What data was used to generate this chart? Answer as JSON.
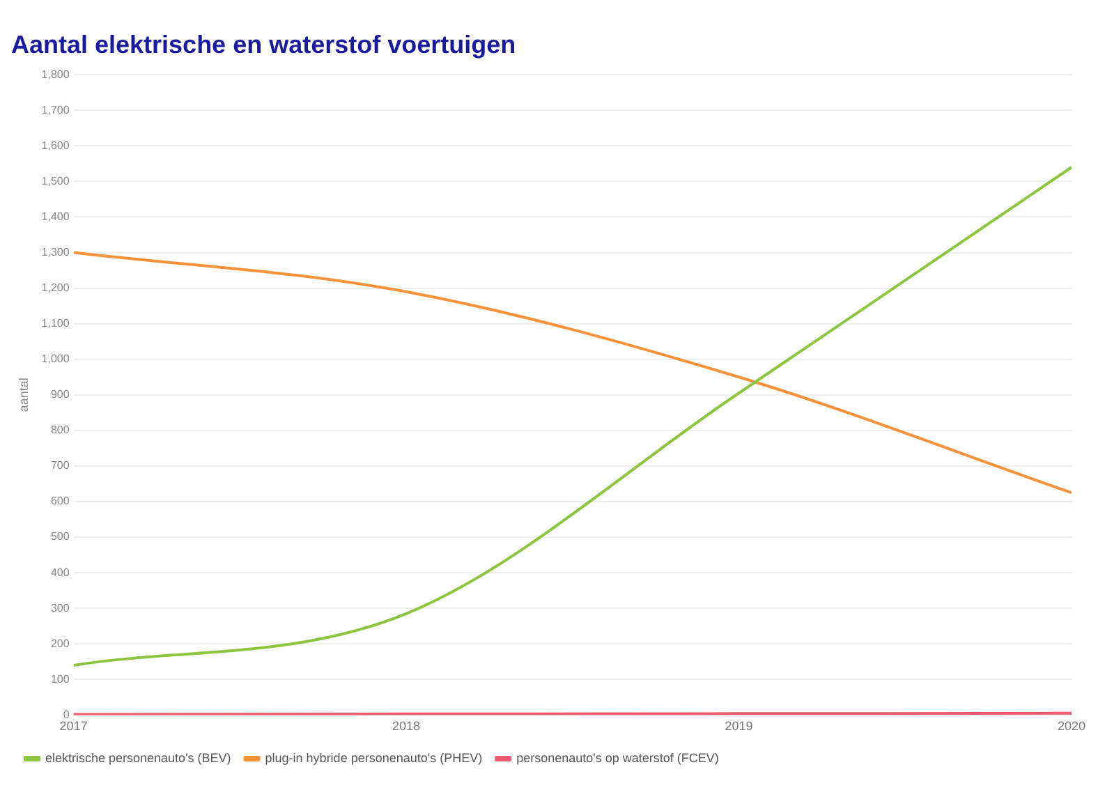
{
  "chart_data": {
    "type": "line",
    "title": "Aantal elektrische en waterstof voertuigen",
    "ylabel": "aantal",
    "x": [
      2017,
      2018,
      2019,
      2020
    ],
    "series": [
      {
        "name": "elektrische personenauto's (BEV)",
        "color": "#8cc63f",
        "values": [
          140,
          285,
          905,
          1540
        ]
      },
      {
        "name": "plug-in hybride personenauto's (PHEV)",
        "color": "#f7923a",
        "values": [
          1300,
          1190,
          950,
          625
        ]
      },
      {
        "name": "personenauto's op waterstof (FCEV)",
        "color": "#ef5a6f",
        "values": [
          2,
          3,
          4,
          5
        ]
      }
    ],
    "xlim": [
      2017,
      2020
    ],
    "xticks": [
      2017,
      2018,
      2019,
      2020
    ],
    "ylim": [
      0,
      1800
    ],
    "yticks": [
      0,
      100,
      200,
      300,
      400,
      500,
      600,
      700,
      800,
      900,
      {
        "value": 1000,
        "label": "1,000"
      },
      {
        "value": 1100,
        "label": "1,100"
      },
      {
        "value": 1200,
        "label": "1,200"
      },
      {
        "value": 1300,
        "label": "1,300"
      },
      {
        "value": 1400,
        "label": "1,400"
      },
      {
        "value": 1500,
        "label": "1,500"
      },
      {
        "value": 1600,
        "label": "1,600"
      },
      {
        "value": 1700,
        "label": "1,700"
      },
      {
        "value": 1800,
        "label": "1,800"
      }
    ],
    "grid": "y",
    "legend": "bottom left",
    "marker": "none",
    "line_style": "solid"
  }
}
